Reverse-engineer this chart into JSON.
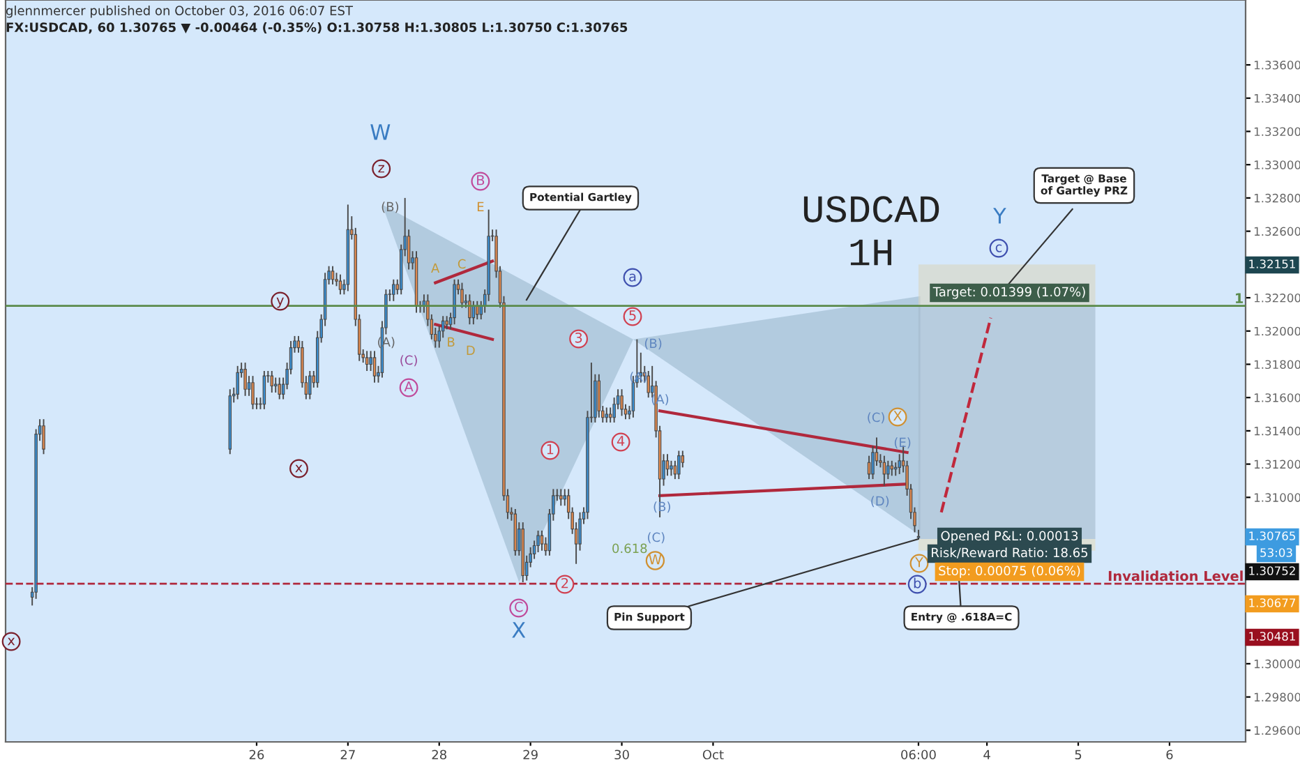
{
  "chart_data": {
    "type": "candlestick",
    "title": "FX:USDCAD, 60 1.30765 ▼ -0.00464 (-0.35%) O:1.30758 H:1.30805 L:1.30750 C:1.30765",
    "subtitle": "glennmercer published on October 03, 2016 06:07 EST",
    "x": [
      "2016-09-23T13:00",
      "2016-09-23T14:00",
      "2016-09-23T15:00",
      "2016-09-23T16:00",
      "2016-09-25T17:00",
      "2016-09-25T18:00",
      "2016-09-25T19:00",
      "2016-09-25T20:00",
      "2016-09-25T21:00",
      "2016-09-25T22:00",
      "2016-09-25T23:00",
      "2016-09-26T00:00",
      "2016-09-26T01:00",
      "2016-09-26T02:00",
      "2016-09-26T03:00",
      "2016-09-26T04:00",
      "2016-09-26T05:00",
      "2016-09-26T06:00",
      "2016-09-26T07:00",
      "2016-09-26T08:00",
      "2016-09-26T09:00",
      "2016-09-26T10:00",
      "2016-09-26T11:00",
      "2016-09-26T12:00",
      "2016-09-26T13:00",
      "2016-09-26T14:00",
      "2016-09-26T15:00",
      "2016-09-26T16:00",
      "2016-09-26T17:00",
      "2016-09-26T18:00",
      "2016-09-26T19:00",
      "2016-09-26T20:00",
      "2016-09-26T21:00",
      "2016-09-26T22:00",
      "2016-09-26T23:00",
      "2016-09-27T00:00",
      "2016-09-27T01:00",
      "2016-09-27T02:00",
      "2016-09-27T03:00",
      "2016-09-27T04:00",
      "2016-09-27T05:00",
      "2016-09-27T06:00",
      "2016-09-27T07:00",
      "2016-09-27T08:00",
      "2016-09-27T09:00",
      "2016-09-27T10:00",
      "2016-09-27T11:00",
      "2016-09-27T12:00",
      "2016-09-27T13:00",
      "2016-09-27T14:00",
      "2016-09-27T15:00",
      "2016-09-27T16:00",
      "2016-09-27T17:00",
      "2016-09-27T18:00",
      "2016-09-27T19:00",
      "2016-09-27T20:00",
      "2016-09-27T21:00",
      "2016-09-27T22:00",
      "2016-09-27T23:00",
      "2016-09-28T00:00",
      "2016-09-28T01:00",
      "2016-09-28T02:00",
      "2016-09-28T03:00",
      "2016-09-28T04:00",
      "2016-09-28T05:00",
      "2016-09-28T06:00",
      "2016-09-28T07:00",
      "2016-09-28T08:00",
      "2016-09-28T09:00",
      "2016-09-28T10:00",
      "2016-09-28T11:00",
      "2016-09-28T12:00",
      "2016-09-28T13:00",
      "2016-09-28T14:00",
      "2016-09-28T15:00",
      "2016-09-28T16:00",
      "2016-09-28T17:00",
      "2016-09-28T18:00",
      "2016-09-28T19:00",
      "2016-09-28T20:00",
      "2016-09-28T21:00",
      "2016-09-28T22:00",
      "2016-09-28T23:00",
      "2016-09-29T00:00",
      "2016-09-29T01:00",
      "2016-09-29T02:00",
      "2016-09-29T03:00",
      "2016-09-29T04:00",
      "2016-09-29T05:00",
      "2016-09-29T06:00",
      "2016-09-29T07:00",
      "2016-09-29T08:00",
      "2016-09-29T09:00",
      "2016-09-29T10:00",
      "2016-09-29T11:00",
      "2016-09-29T12:00",
      "2016-09-29T13:00",
      "2016-09-29T14:00",
      "2016-09-29T15:00",
      "2016-09-29T16:00",
      "2016-09-29T17:00",
      "2016-09-29T18:00",
      "2016-09-29T19:00",
      "2016-09-29T20:00",
      "2016-09-29T21:00",
      "2016-09-29T22:00",
      "2016-09-29T23:00",
      "2016-09-30T00:00",
      "2016-09-30T01:00",
      "2016-09-30T02:00",
      "2016-09-30T03:00",
      "2016-09-30T04:00",
      "2016-09-30T05:00",
      "2016-09-30T06:00",
      "2016-09-30T07:00",
      "2016-09-30T08:00",
      "2016-09-30T09:00",
      "2016-09-30T10:00",
      "2016-09-30T11:00",
      "2016-09-30T12:00",
      "2016-09-30T13:00",
      "2016-09-30T14:00",
      "2016-09-30T15:00",
      "2016-09-30T16:00",
      "2016-10-02T17:00",
      "2016-10-02T18:00",
      "2016-10-02T19:00",
      "2016-10-02T20:00",
      "2016-10-02T21:00",
      "2016-10-02T22:00",
      "2016-10-02T23:00",
      "2016-10-03T00:00",
      "2016-10-03T01:00",
      "2016-10-03T02:00",
      "2016-10-03T03:00",
      "2016-10-03T04:00",
      "2016-10-03T05:00",
      "2016-10-03T06:00"
    ],
    "ohlc": [
      [
        1.304,
        1.3046,
        1.3035,
        1.3043
      ],
      [
        1.3043,
        1.3141,
        1.3039,
        1.3138
      ],
      [
        1.3138,
        1.3147,
        1.3134,
        1.3143
      ],
      [
        1.3143,
        1.3147,
        1.3126,
        1.3129
      ],
      [
        1.3129,
        1.3165,
        1.3126,
        1.3161
      ],
      [
        1.3161,
        1.3166,
        1.3157,
        1.3162
      ],
      [
        1.3162,
        1.3179,
        1.3159,
        1.3175
      ],
      [
        1.3175,
        1.3181,
        1.3172,
        1.3177
      ],
      [
        1.3177,
        1.3181,
        1.3161,
        1.3165
      ],
      [
        1.3165,
        1.3173,
        1.3161,
        1.3169
      ],
      [
        1.3169,
        1.3173,
        1.3153,
        1.3156
      ],
      [
        1.3156,
        1.316,
        1.3153,
        1.3156
      ],
      [
        1.3156,
        1.316,
        1.3153,
        1.3156
      ],
      [
        1.3156,
        1.3176,
        1.3153,
        1.3173
      ],
      [
        1.3173,
        1.3176,
        1.3169,
        1.3173
      ],
      [
        1.3173,
        1.3176,
        1.3163,
        1.3167
      ],
      [
        1.3167,
        1.3172,
        1.3163,
        1.3168
      ],
      [
        1.3168,
        1.3172,
        1.3159,
        1.3162
      ],
      [
        1.3162,
        1.3172,
        1.3159,
        1.3168
      ],
      [
        1.3168,
        1.3181,
        1.3165,
        1.3177
      ],
      [
        1.3177,
        1.3194,
        1.3174,
        1.319
      ],
      [
        1.319,
        1.3197,
        1.3187,
        1.3194
      ],
      [
        1.3194,
        1.3197,
        1.3187,
        1.319
      ],
      [
        1.319,
        1.3194,
        1.3166,
        1.3169
      ],
      [
        1.3169,
        1.3173,
        1.3159,
        1.3162
      ],
      [
        1.3162,
        1.3176,
        1.3159,
        1.3173
      ],
      [
        1.3173,
        1.3176,
        1.3166,
        1.3169
      ],
      [
        1.3169,
        1.32,
        1.3166,
        1.3196
      ],
      [
        1.3196,
        1.321,
        1.3193,
        1.3207
      ],
      [
        1.3207,
        1.3235,
        1.3203,
        1.3231
      ],
      [
        1.3231,
        1.3239,
        1.3228,
        1.3236
      ],
      [
        1.3236,
        1.3239,
        1.3228,
        1.3231
      ],
      [
        1.3231,
        1.3235,
        1.3227,
        1.323
      ],
      [
        1.323,
        1.3234,
        1.3222,
        1.3225
      ],
      [
        1.3225,
        1.3231,
        1.3222,
        1.3228
      ],
      [
        1.3228,
        1.3276,
        1.3224,
        1.3261
      ],
      [
        1.3261,
        1.3269,
        1.3255,
        1.3258
      ],
      [
        1.3258,
        1.3262,
        1.3203,
        1.3207
      ],
      [
        1.3207,
        1.321,
        1.3182,
        1.3186
      ],
      [
        1.3186,
        1.3189,
        1.3181,
        1.3184
      ],
      [
        1.3184,
        1.3188,
        1.3176,
        1.318
      ],
      [
        1.318,
        1.3188,
        1.3176,
        1.3184
      ],
      [
        1.3184,
        1.3188,
        1.3169,
        1.3173
      ],
      [
        1.3173,
        1.3179,
        1.3169,
        1.3175
      ],
      [
        1.3175,
        1.3206,
        1.3172,
        1.3202
      ],
      [
        1.3202,
        1.3225,
        1.3198,
        1.3222
      ],
      [
        1.3222,
        1.3225,
        1.3218,
        1.3222
      ],
      [
        1.3222,
        1.3231,
        1.3218,
        1.3228
      ],
      [
        1.3228,
        1.3231,
        1.3222,
        1.3225
      ],
      [
        1.3225,
        1.3252,
        1.3222,
        1.3249
      ],
      [
        1.3249,
        1.328,
        1.3245,
        1.3257
      ],
      [
        1.3257,
        1.3261,
        1.3237,
        1.3241
      ],
      [
        1.3241,
        1.3248,
        1.3237,
        1.3244
      ],
      [
        1.3244,
        1.3248,
        1.3211,
        1.3215
      ],
      [
        1.3215,
        1.3218,
        1.3211,
        1.3215
      ],
      [
        1.3215,
        1.3222,
        1.3211,
        1.3218
      ],
      [
        1.3218,
        1.3222,
        1.3203,
        1.3207
      ],
      [
        1.3207,
        1.321,
        1.3195,
        1.3198
      ],
      [
        1.3198,
        1.3202,
        1.319,
        1.3194
      ],
      [
        1.3194,
        1.3203,
        1.319,
        1.32
      ],
      [
        1.32,
        1.3209,
        1.3196,
        1.3206
      ],
      [
        1.3206,
        1.3209,
        1.3201,
        1.3204
      ],
      [
        1.3204,
        1.3211,
        1.3201,
        1.3208
      ],
      [
        1.3208,
        1.3231,
        1.3204,
        1.3228
      ],
      [
        1.3228,
        1.3231,
        1.3222,
        1.3225
      ],
      [
        1.3225,
        1.3229,
        1.3214,
        1.3217
      ],
      [
        1.3217,
        1.3222,
        1.3214,
        1.3218
      ],
      [
        1.3218,
        1.3222,
        1.3204,
        1.3208
      ],
      [
        1.3208,
        1.3218,
        1.3204,
        1.3215
      ],
      [
        1.3215,
        1.3218,
        1.3207,
        1.321
      ],
      [
        1.321,
        1.3218,
        1.3207,
        1.3215
      ],
      [
        1.3215,
        1.3225,
        1.3211,
        1.3222
      ],
      [
        1.3222,
        1.3273,
        1.3218,
        1.3257
      ],
      [
        1.3257,
        1.3261,
        1.3254,
        1.3257
      ],
      [
        1.3257,
        1.3261,
        1.3232,
        1.3236
      ],
      [
        1.3236,
        1.3239,
        1.3214,
        1.3217
      ],
      [
        1.3217,
        1.3221,
        1.3098,
        1.3101
      ],
      [
        1.3101,
        1.3105,
        1.3087,
        1.3091
      ],
      [
        1.3091,
        1.3094,
        1.3086,
        1.309
      ],
      [
        1.309,
        1.3093,
        1.3065,
        1.3068
      ],
      [
        1.3068,
        1.3085,
        1.3065,
        1.3081
      ],
      [
        1.3081,
        1.3085,
        1.3049,
        1.3053
      ],
      [
        1.3053,
        1.3065,
        1.305,
        1.3061
      ],
      [
        1.3061,
        1.307,
        1.3058,
        1.3066
      ],
      [
        1.3066,
        1.3074,
        1.3063,
        1.3071
      ],
      [
        1.3071,
        1.308,
        1.3067,
        1.3077
      ],
      [
        1.3077,
        1.308,
        1.3068,
        1.3072
      ],
      [
        1.3072,
        1.3076,
        1.3065,
        1.3068
      ],
      [
        1.3068,
        1.3093,
        1.3065,
        1.309
      ],
      [
        1.309,
        1.3105,
        1.3086,
        1.3101
      ],
      [
        1.3101,
        1.3105,
        1.3098,
        1.3101
      ],
      [
        1.3101,
        1.3105,
        1.3095,
        1.3099
      ],
      [
        1.3099,
        1.3105,
        1.3095,
        1.3101
      ],
      [
        1.3101,
        1.3105,
        1.3087,
        1.3091
      ],
      [
        1.3091,
        1.3094,
        1.3078,
        1.3081
      ],
      [
        1.3081,
        1.3085,
        1.306,
        1.3072
      ],
      [
        1.3072,
        1.3091,
        1.3068,
        1.3087
      ],
      [
        1.3087,
        1.3094,
        1.3084,
        1.3091
      ],
      [
        1.3091,
        1.3152,
        1.3087,
        1.3148
      ],
      [
        1.3148,
        1.3181,
        1.3145,
        1.3148
      ],
      [
        1.3148,
        1.3174,
        1.3145,
        1.317
      ],
      [
        1.317,
        1.3174,
        1.3148,
        1.3152
      ],
      [
        1.3152,
        1.3155,
        1.3145,
        1.3148
      ],
      [
        1.3148,
        1.3154,
        1.3145,
        1.315
      ],
      [
        1.315,
        1.3154,
        1.3145,
        1.3148
      ],
      [
        1.3148,
        1.316,
        1.3145,
        1.3156
      ],
      [
        1.3156,
        1.3165,
        1.3153,
        1.3161
      ],
      [
        1.3161,
        1.3165,
        1.3149,
        1.3153
      ],
      [
        1.3153,
        1.3156,
        1.3147,
        1.315
      ],
      [
        1.315,
        1.3155,
        1.3147,
        1.3152
      ],
      [
        1.3152,
        1.3173,
        1.3148,
        1.3169
      ],
      [
        1.3169,
        1.3195,
        1.3166,
        1.3173
      ],
      [
        1.3173,
        1.3187,
        1.3169,
        1.3175
      ],
      [
        1.3175,
        1.3179,
        1.3169,
        1.3173
      ],
      [
        1.3173,
        1.3176,
        1.316,
        1.3163
      ],
      [
        1.3163,
        1.3179,
        1.316,
        1.3167
      ],
      [
        1.3167,
        1.317,
        1.3136,
        1.314
      ],
      [
        1.314,
        1.3143,
        1.3088,
        1.3111
      ],
      [
        1.3111,
        1.3126,
        1.3107,
        1.3122
      ],
      [
        1.3122,
        1.3126,
        1.3113,
        1.3117
      ],
      [
        1.3117,
        1.3122,
        1.3113,
        1.3119
      ],
      [
        1.3119,
        1.3122,
        1.3111,
        1.3114
      ],
      [
        1.3114,
        1.3128,
        1.3111,
        1.3125
      ],
      [
        1.3125,
        1.3128,
        1.3118,
        1.3121
      ],
      [
        1.3121,
        1.3125,
        1.3111,
        1.3114
      ],
      [
        1.3114,
        1.3131,
        1.3111,
        1.3127
      ],
      [
        1.3127,
        1.3136,
        1.3119,
        1.3122
      ],
      [
        1.3122,
        1.3126,
        1.3118,
        1.3121
      ],
      [
        1.3121,
        1.3125,
        1.3107,
        1.3114
      ],
      [
        1.3114,
        1.3122,
        1.3111,
        1.3119
      ],
      [
        1.3119,
        1.3122,
        1.3113,
        1.3117
      ],
      [
        1.3117,
        1.3121,
        1.3113,
        1.3118
      ],
      [
        1.3118,
        1.3126,
        1.3114,
        1.3122
      ],
      [
        1.3122,
        1.3131,
        1.3115,
        1.3119
      ],
      [
        1.3119,
        1.3122,
        1.3101,
        1.3105
      ],
      [
        1.3105,
        1.3108,
        1.3087,
        1.3091
      ],
      [
        1.3091,
        1.3094,
        1.3079,
        1.3083
      ],
      [
        1.30758,
        1.30805,
        1.3075,
        1.30765
      ]
    ],
    "series": [
      {
        "type": "area",
        "color": "#9bb7cd",
        "x": [
          "2016-09-27T09:00",
          "2016-09-28T21:00",
          "2016-09-30T03:00",
          "2016-09-27T09:00"
        ],
        "values": [
          1.3276,
          1.3049,
          1.3195,
          1.3276
        ]
      },
      {
        "type": "area",
        "color": "#9bb7cd",
        "x": [
          "2016-09-30T03:00",
          "2016-10-03T06:30",
          "2016-10-03T06:30",
          "2016-09-30T03:00"
        ],
        "values": [
          1.3195,
          1.3077,
          1.3221,
          1.3195
        ]
      },
      {
        "type": "area",
        "color": "#a3b9cb",
        "x": [
          "2016-10-03T06:00",
          "2016-10-05T04:30",
          "2016-10-05T04:30",
          "2016-10-03T06:00",
          "2016-10-03T06:00"
        ],
        "values": [
          1.3075,
          1.3075,
          1.3215,
          1.3215,
          1.3075
        ]
      },
      {
        "type": "area",
        "color": "#d9d6c2",
        "x": [
          "2016-10-03T06:00",
          "2016-10-05T04:30",
          "2016-10-05T04:30",
          "2016-10-03T06:00",
          "2016-10-03T06:00"
        ],
        "values": [
          1.3215,
          1.3215,
          1.324,
          1.324,
          1.3215
        ]
      },
      {
        "type": "area",
        "color": "#e2dcbf",
        "x": [
          "2016-10-03T06:00",
          "2016-10-05T04:30",
          "2016-10-05T04:30",
          "2016-10-03T06:00",
          "2016-10-03T06:00"
        ],
        "values": [
          1.3075,
          1.3075,
          1.3068,
          1.3068,
          1.3075
        ]
      },
      {
        "type": "line",
        "color": "#b0283c",
        "x": [
          "2016-09-27T23:00",
          "2016-09-28T14:00"
        ],
        "values": [
          1.3229,
          1.3242
        ]
      },
      {
        "type": "line",
        "color": "#b0283c",
        "x": [
          "2016-09-27T23:00",
          "2016-09-28T14:00"
        ],
        "values": [
          1.3204,
          1.3195
        ]
      },
      {
        "type": "line",
        "color": "#b0283c",
        "x": [
          "2016-09-30T10:00",
          "2016-10-03T03:00"
        ],
        "values": [
          1.3152,
          1.3127
        ]
      },
      {
        "type": "line",
        "color": "#b0283c",
        "x": [
          "2016-09-30T10:00",
          "2016-10-03T03:00"
        ],
        "values": [
          1.3101,
          1.3108
        ]
      },
      {
        "type": "line",
        "color": "#c0283c",
        "line_style": "dashed",
        "x": [
          "2016-10-03T12:00",
          "2016-10-04T01:00"
        ],
        "values": [
          1.3091,
          1.3208
        ]
      }
    ],
    "xlim": [
      "2016-09-23T06:00",
      "2016-10-06T20:00"
    ],
    "xticks": [
      {
        "value": "2016-09-26",
        "label": "26"
      },
      {
        "value": "2016-09-27",
        "label": "27"
      },
      {
        "value": "2016-09-28",
        "label": "28"
      },
      {
        "value": "2016-09-29",
        "label": "29"
      },
      {
        "value": "2016-09-30",
        "label": "30"
      },
      {
        "value": "2016-10-01",
        "label": "Oct"
      },
      {
        "value": "2016-10-03T06:00",
        "label": "06:00"
      },
      {
        "value": "2016-10-04",
        "label": "4"
      },
      {
        "value": "2016-10-05",
        "label": "5"
      },
      {
        "value": "2016-10-06",
        "label": "6"
      }
    ],
    "ylim": [
      1.2953,
      1.3399
    ],
    "yticks": [
      {
        "value": 1.296,
        "label": "1.29600"
      },
      {
        "value": 1.298,
        "label": "1.29800"
      },
      {
        "value": 1.3,
        "label": "1.30000"
      },
      {
        "value": 1.31,
        "label": "1.31000"
      },
      {
        "value": 1.312,
        "label": "1.31200"
      },
      {
        "value": 1.314,
        "label": "1.31400"
      },
      {
        "value": 1.316,
        "label": "1.31600"
      },
      {
        "value": 1.318,
        "label": "1.31800"
      },
      {
        "value": 1.32,
        "label": "1.32000"
      },
      {
        "value": 1.322,
        "label": "1.32200"
      },
      {
        "value": 1.326,
        "label": "1.32600"
      },
      {
        "value": 1.328,
        "label": "1.32800"
      },
      {
        "value": 1.33,
        "label": "1.33000"
      },
      {
        "value": 1.332,
        "label": "1.33200"
      },
      {
        "value": 1.334,
        "label": "1.33400"
      },
      {
        "value": 1.336,
        "label": "1.33600"
      }
    ],
    "ref_lines": [
      {
        "axis": "y",
        "value": 1.30481,
        "label": "Invalidation Level",
        "color": "#b0283c",
        "line_style": "dashed"
      },
      {
        "axis": "y",
        "value": 1.32151,
        "label": "1",
        "color": "#5a8a4a",
        "line_style": "solid"
      }
    ],
    "annotations": [
      "x",
      "y",
      "x",
      "W",
      "z",
      "(B)",
      "(A)",
      "(C)",
      "A",
      "A",
      "B",
      "C",
      "D",
      "E",
      "B",
      "C",
      "X",
      "1",
      "2",
      "3",
      "4",
      "5",
      "a",
      "(B)",
      "(A)",
      "(A)",
      "(C)",
      "X",
      "(E)",
      "(B)",
      "(D)",
      "(C)",
      "0.618",
      "W",
      "Y",
      "b",
      "Y",
      "c",
      "USDCAD",
      "1H",
      "Potential Gartley",
      "Target @ Base\nof Gartley PRZ",
      {
        "text": "Pin Support",
        "x": "2016-10-03T06:00",
        "y": 1.3075
      },
      {
        "text": "Entry @ .618A=C",
        "x": "2016-10-03T16:00",
        "y": 1.3075
      },
      "Target: 0.01399 (1.07%)",
      "Opened P&L: 0.00013",
      "Risk/Reward Ratio: 18.65",
      "Stop: 0.00075 (0.06%)",
      "1.32151",
      "1.30765",
      "53:03",
      "1.30752",
      "1.30677",
      "1.30481"
    ]
  }
}
